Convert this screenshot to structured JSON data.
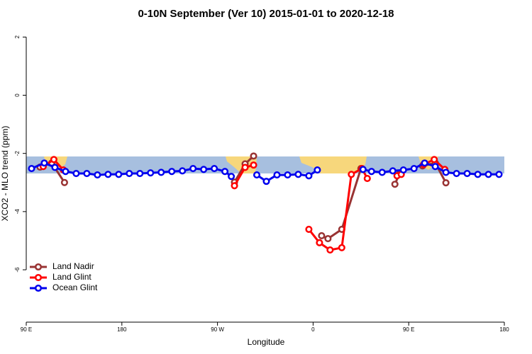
{
  "chart_data": {
    "type": "line",
    "title": "0-10N September (Ver 10)   2015-01-01 to 2020-12-18",
    "x_label": "Longitude",
    "y_label": "XCO2 - MLO trend (ppm)",
    "xlim": [
      90,
      540
    ],
    "xticks": [
      {
        "value": 90,
        "label": "90 E"
      },
      {
        "value": 180,
        "label": "180"
      },
      {
        "value": 270,
        "label": "90 W"
      },
      {
        "value": 360,
        "label": "0"
      },
      {
        "value": 450,
        "label": "90 E"
      },
      {
        "value": 540,
        "label": "180"
      }
    ],
    "ylim": [
      -7.8,
      2.3
    ],
    "yticks": [
      2,
      0,
      -2,
      -4,
      -6
    ],
    "legend": "bottom-left",
    "series": [
      {
        "name": "Land Nadir",
        "color": "#993333",
        "x": [
          103,
          114,
          126,
          null,
          286,
          296,
          304,
          null,
          368,
          374,
          387,
          405,
          null,
          437,
          441,
          null,
          463,
          475,
          485
        ],
        "values": [
          -2.47,
          -2.33,
          -3.0,
          null,
          -2.99,
          -2.36,
          -2.09,
          null,
          -4.83,
          -4.93,
          -4.61,
          -2.52,
          null,
          -3.06,
          -2.72,
          null,
          -2.43,
          -2.33,
          -3.01
        ]
      },
      {
        "name": "Land Glint",
        "color": "#ff0000",
        "x": [
          106,
          116,
          125,
          null,
          286,
          296,
          304,
          null,
          356,
          366,
          376,
          387,
          396,
          406,
          411,
          null,
          439,
          443,
          null,
          464,
          474,
          484
        ],
        "values": [
          -2.45,
          -2.21,
          -2.57,
          null,
          -3.11,
          -2.48,
          -2.4,
          null,
          -4.61,
          -5.07,
          -5.32,
          -5.24,
          -2.72,
          -2.52,
          -2.86,
          null,
          -2.77,
          -2.72,
          null,
          -2.38,
          -2.21,
          -2.55
        ]
      },
      {
        "name": "Ocean Glint",
        "color": "#0000ee",
        "x": [
          95,
          107,
          117,
          127,
          137,
          147,
          157,
          167,
          177,
          187,
          197,
          207,
          217,
          227,
          237,
          247,
          257,
          267,
          277,
          283,
          null,
          307,
          316,
          326,
          336,
          346,
          356,
          364,
          null,
          407,
          415,
          425,
          435,
          445,
          455,
          465,
          475,
          485,
          495,
          505,
          515,
          525,
          535
        ],
        "values": [
          -2.52,
          -2.33,
          -2.48,
          -2.62,
          -2.69,
          -2.69,
          -2.74,
          -2.72,
          -2.72,
          -2.69,
          -2.69,
          -2.67,
          -2.65,
          -2.62,
          -2.6,
          -2.52,
          -2.55,
          -2.52,
          -2.62,
          -2.79,
          null,
          -2.74,
          -2.96,
          -2.74,
          -2.74,
          -2.72,
          -2.77,
          -2.57,
          null,
          -2.55,
          -2.62,
          -2.65,
          -2.6,
          -2.57,
          -2.52,
          -2.33,
          -2.45,
          -2.65,
          -2.69,
          -2.69,
          -2.72,
          -2.72,
          -2.72
        ]
      }
    ]
  }
}
